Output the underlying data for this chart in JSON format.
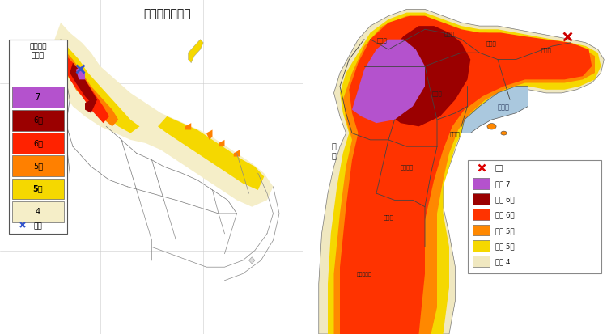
{
  "title": "推計震度分布図",
  "title_fontsize": 10,
  "fig_width": 7.5,
  "fig_height": 4.14,
  "bg_color": "#ffffff",
  "colors": {
    "intensity7": "#b452cd",
    "intensity6s": "#9b0000",
    "intensity6w": "#ff2200",
    "intensity5s": "#ff8000",
    "intensity5w": "#f5d800",
    "intensity4": "#f5eec8",
    "sea_blue": "#aac8de",
    "land_bg": "#f8f8f5",
    "border": "#888888",
    "right_7": "#b452cd",
    "right_6s": "#9b0000",
    "right_6w": "#ff3300",
    "right_5s": "#ff8800",
    "right_5w": "#f5d800",
    "right_4": "#f0e8c0"
  },
  "legend_left_items": [
    {
      "label": "7",
      "color": "#b452cd",
      "bold": false
    },
    {
      "label": "6強",
      "color": "#9b0000",
      "bold": false
    },
    {
      "label": "6弱",
      "color": "#ff2200",
      "bold": false
    },
    {
      "label": "5強",
      "color": "#ff8000",
      "bold": false
    },
    {
      "label": "5弱",
      "color": "#f5d800",
      "bold": true
    },
    {
      "label": "4",
      "color": "#f5eec8",
      "bold": false
    }
  ],
  "legend_right_items": [
    {
      "label": "震央",
      "color": "#dd0000",
      "is_epicenter": true
    },
    {
      "label": "震度 7",
      "color": "#b452cd"
    },
    {
      "label": "震度 6強",
      "color": "#9b0000"
    },
    {
      "label": "震度 6弱",
      "color": "#ff3300"
    },
    {
      "label": "震度 5強",
      "color": "#ff8800"
    },
    {
      "label": "震度 5弱",
      "color": "#f5d800"
    },
    {
      "label": "震度 4",
      "color": "#f0e8c0"
    }
  ]
}
